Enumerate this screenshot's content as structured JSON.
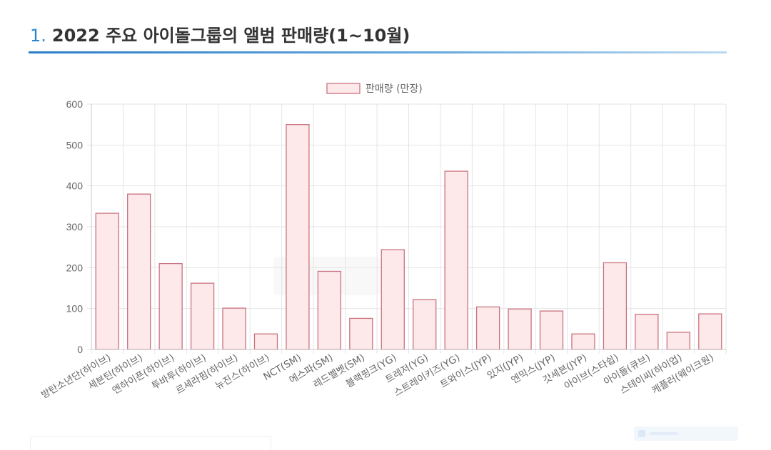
{
  "page": {
    "title_number": "1.",
    "title_text": "2022 주요 아이돌그룹의 앨범 판매량(1~10월)"
  },
  "chart_data": {
    "type": "bar",
    "title": "2022 주요 아이돌그룹의 앨범 판매량(1~10월)",
    "legend": {
      "label": "판매량 (만장)",
      "placement": "top-center"
    },
    "xlabel": "",
    "ylabel": "",
    "ylim": [
      0,
      600
    ],
    "yticks": [
      0,
      100,
      200,
      300,
      400,
      500,
      600
    ],
    "grid": true,
    "colors": {
      "bar_fill": "#fde8ea",
      "bar_stroke": "#c9737f",
      "grid": "#e5e5e5",
      "axis": "#c8c8c8",
      "tick_text": "#666666"
    },
    "categories": [
      "방탄소년단(하이브)",
      "세븐틴(하이브)",
      "엔하이픈(하이브)",
      "투바투(하이브)",
      "르세라핌(하이브)",
      "뉴진스(하이브)",
      "NCT(SM)",
      "에스파(SM)",
      "레드벨벳(SM)",
      "블랙핑크(YG)",
      "트레저(YG)",
      "스트레이키즈(YG)",
      "트와이스(JYP)",
      "있지(JYP)",
      "엔믹스(JYP)",
      "갓세븐(JYP)",
      "아이브(스타쉽)",
      "아이들(큐브)",
      "스테이씨(하이업)",
      "케플러(웨이크원)"
    ],
    "series": [
      {
        "name": "판매량 (만장)",
        "values": [
          333,
          380,
          210,
          162,
          101,
          38,
          550,
          191,
          76,
          244,
          122,
          436,
          104,
          99,
          94,
          38,
          212,
          86,
          42,
          87
        ]
      }
    ]
  }
}
